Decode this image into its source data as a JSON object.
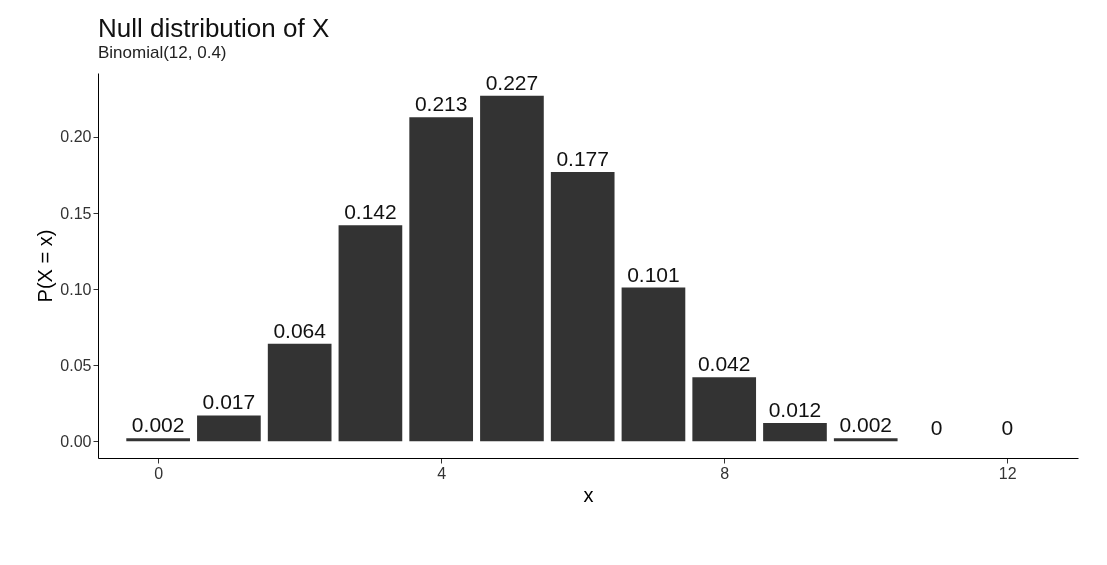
{
  "chart_data": {
    "type": "bar",
    "title": "Null distribution of X",
    "subtitle": "Binomial(12, 0.4)",
    "xlabel": "x",
    "ylabel": "P(X = x)",
    "x": [
      0,
      1,
      2,
      3,
      4,
      5,
      6,
      7,
      8,
      9,
      10,
      11,
      12
    ],
    "values": [
      0.002,
      0.017,
      0.064,
      0.142,
      0.213,
      0.227,
      0.177,
      0.101,
      0.042,
      0.012,
      0.002,
      0,
      0
    ],
    "color": "#333333",
    "xlim": [
      -0.85,
      13
    ],
    "xticks": [
      0,
      4,
      8,
      12
    ],
    "ylim": [
      -0.011,
      0.242
    ],
    "yticks": [
      {
        "value": 0,
        "label": "0.00"
      },
      0.05,
      {
        "value": 0.1,
        "label": "0.10"
      },
      0.15,
      {
        "value": 0.2,
        "label": "0.20"
      }
    ],
    "data_labels": true,
    "grid": false
  }
}
